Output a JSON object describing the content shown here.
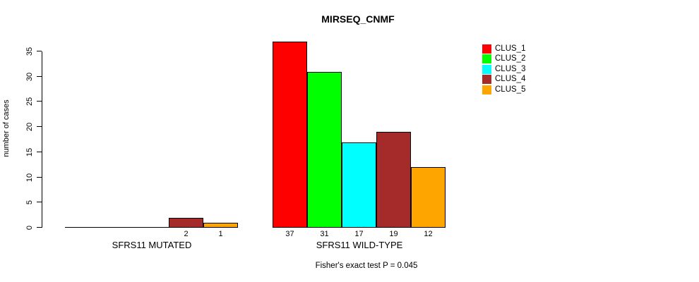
{
  "title": "MIRSEQ_CNMF",
  "chart_data": {
    "type": "bar",
    "title": "MIRSEQ_CNMF",
    "xlabel": "",
    "ylabel": "number of cases",
    "ylim": [
      0,
      37
    ],
    "yticks": [
      0,
      5,
      10,
      15,
      20,
      25,
      30,
      35
    ],
    "grid": false,
    "legend_position": "topright",
    "bar_value_labels": "shown under each nonzero bar",
    "categories": [
      "SFRS11 MUTATED",
      "SFRS11 WILD-TYPE"
    ],
    "series": [
      {
        "name": "CLUS_1",
        "color": "#ff0000",
        "values": [
          0,
          37
        ]
      },
      {
        "name": "CLUS_2",
        "color": "#00ff00",
        "values": [
          0,
          31
        ]
      },
      {
        "name": "CLUS_3",
        "color": "#00ffff",
        "values": [
          0,
          17
        ]
      },
      {
        "name": "CLUS_4",
        "color": "#a52a2a",
        "values": [
          2,
          19
        ]
      },
      {
        "name": "CLUS_5",
        "color": "#ffa500",
        "values": [
          1,
          12
        ]
      }
    ],
    "footnote": "Fisher's exact test P = 0.045"
  }
}
